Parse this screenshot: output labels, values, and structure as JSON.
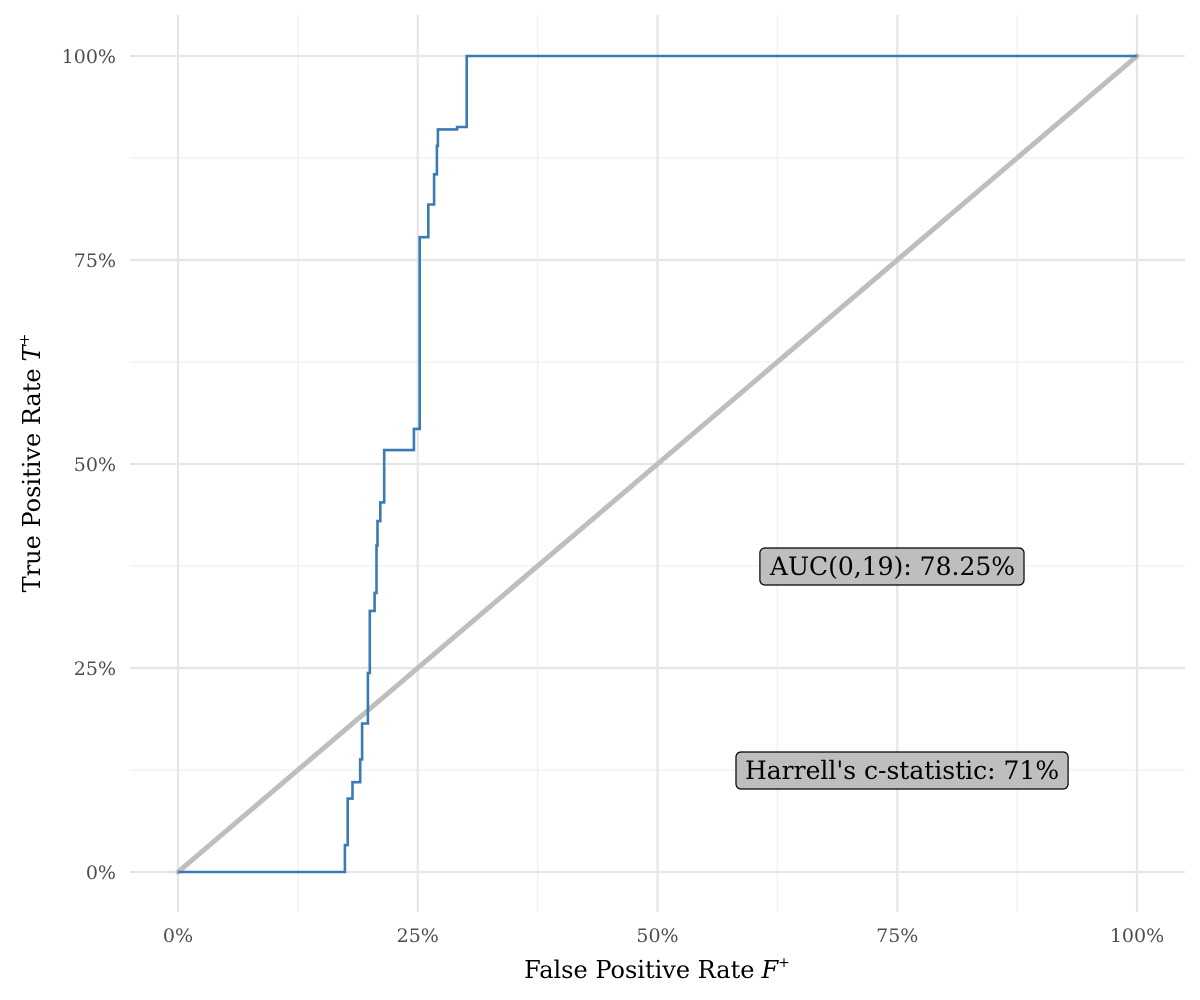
{
  "chart_data": {
    "type": "line",
    "title": "",
    "xlabel": "False Positive Rate",
    "xlabel_symbol": "F",
    "xlabel_superscript": "+",
    "ylabel": "True Positive Rate",
    "ylabel_symbol": "T",
    "ylabel_superscript": "+",
    "xlim": [
      0,
      1
    ],
    "ylim": [
      0,
      1
    ],
    "x_ticks": [
      0,
      0.25,
      0.5,
      0.75,
      1
    ],
    "x_tick_labels": [
      "0%",
      "25%",
      "50%",
      "75%",
      "100%"
    ],
    "y_ticks": [
      0,
      0.25,
      0.5,
      0.75,
      1
    ],
    "y_tick_labels": [
      "0%",
      "25%",
      "50%",
      "75%",
      "100%"
    ],
    "grid": true,
    "colors": {
      "roc": "#3a7ab5",
      "diagonal": "#bebebe",
      "grid_major": "#e6e6e6",
      "grid_minor": "#f0f0f0",
      "label_fill": "#bebebe"
    },
    "series": [
      {
        "name": "ROC curve",
        "step": true,
        "x": [
          0,
          0.172,
          0.174,
          0.174,
          0.177,
          0.177,
          0.182,
          0.182,
          0.19,
          0.19,
          0.192,
          0.192,
          0.198,
          0.198,
          0.2,
          0.2,
          0.2,
          0.2,
          0.205,
          0.205,
          0.207,
          0.207,
          0.208,
          0.208,
          0.211,
          0.211,
          0.215,
          0.215,
          0.216,
          0.216,
          0.246,
          0.246,
          0.252,
          0.252,
          0.261,
          0.261,
          0.267,
          0.267,
          0.27,
          0.27,
          0.271,
          0.271,
          0.291,
          0.291,
          0.301,
          0.301,
          1
        ],
        "y": [
          0,
          0,
          0,
          0.033,
          0.033,
          0.09,
          0.09,
          0.11,
          0.11,
          0.138,
          0.138,
          0.182,
          0.182,
          0.244,
          0.244,
          0.32,
          0.32,
          0.32,
          0.32,
          0.342,
          0.342,
          0.4,
          0.4,
          0.43,
          0.43,
          0.453,
          0.453,
          0.517,
          0.517,
          0.517,
          0.517,
          0.543,
          0.543,
          0.778,
          0.778,
          0.818,
          0.818,
          0.855,
          0.855,
          0.89,
          0.89,
          0.91,
          0.91,
          0.913,
          0.913,
          1,
          1
        ]
      },
      {
        "name": "Reference diagonal",
        "x": [
          0,
          1
        ],
        "y": [
          0,
          1
        ]
      }
    ],
    "annotations": [
      {
        "text": "AUC(0,19): 78.25%",
        "x": 0.745,
        "y": 0.375
      },
      {
        "text": "Harrell's c-statistic: 71%",
        "x": 0.755,
        "y": 0.125
      }
    ]
  }
}
